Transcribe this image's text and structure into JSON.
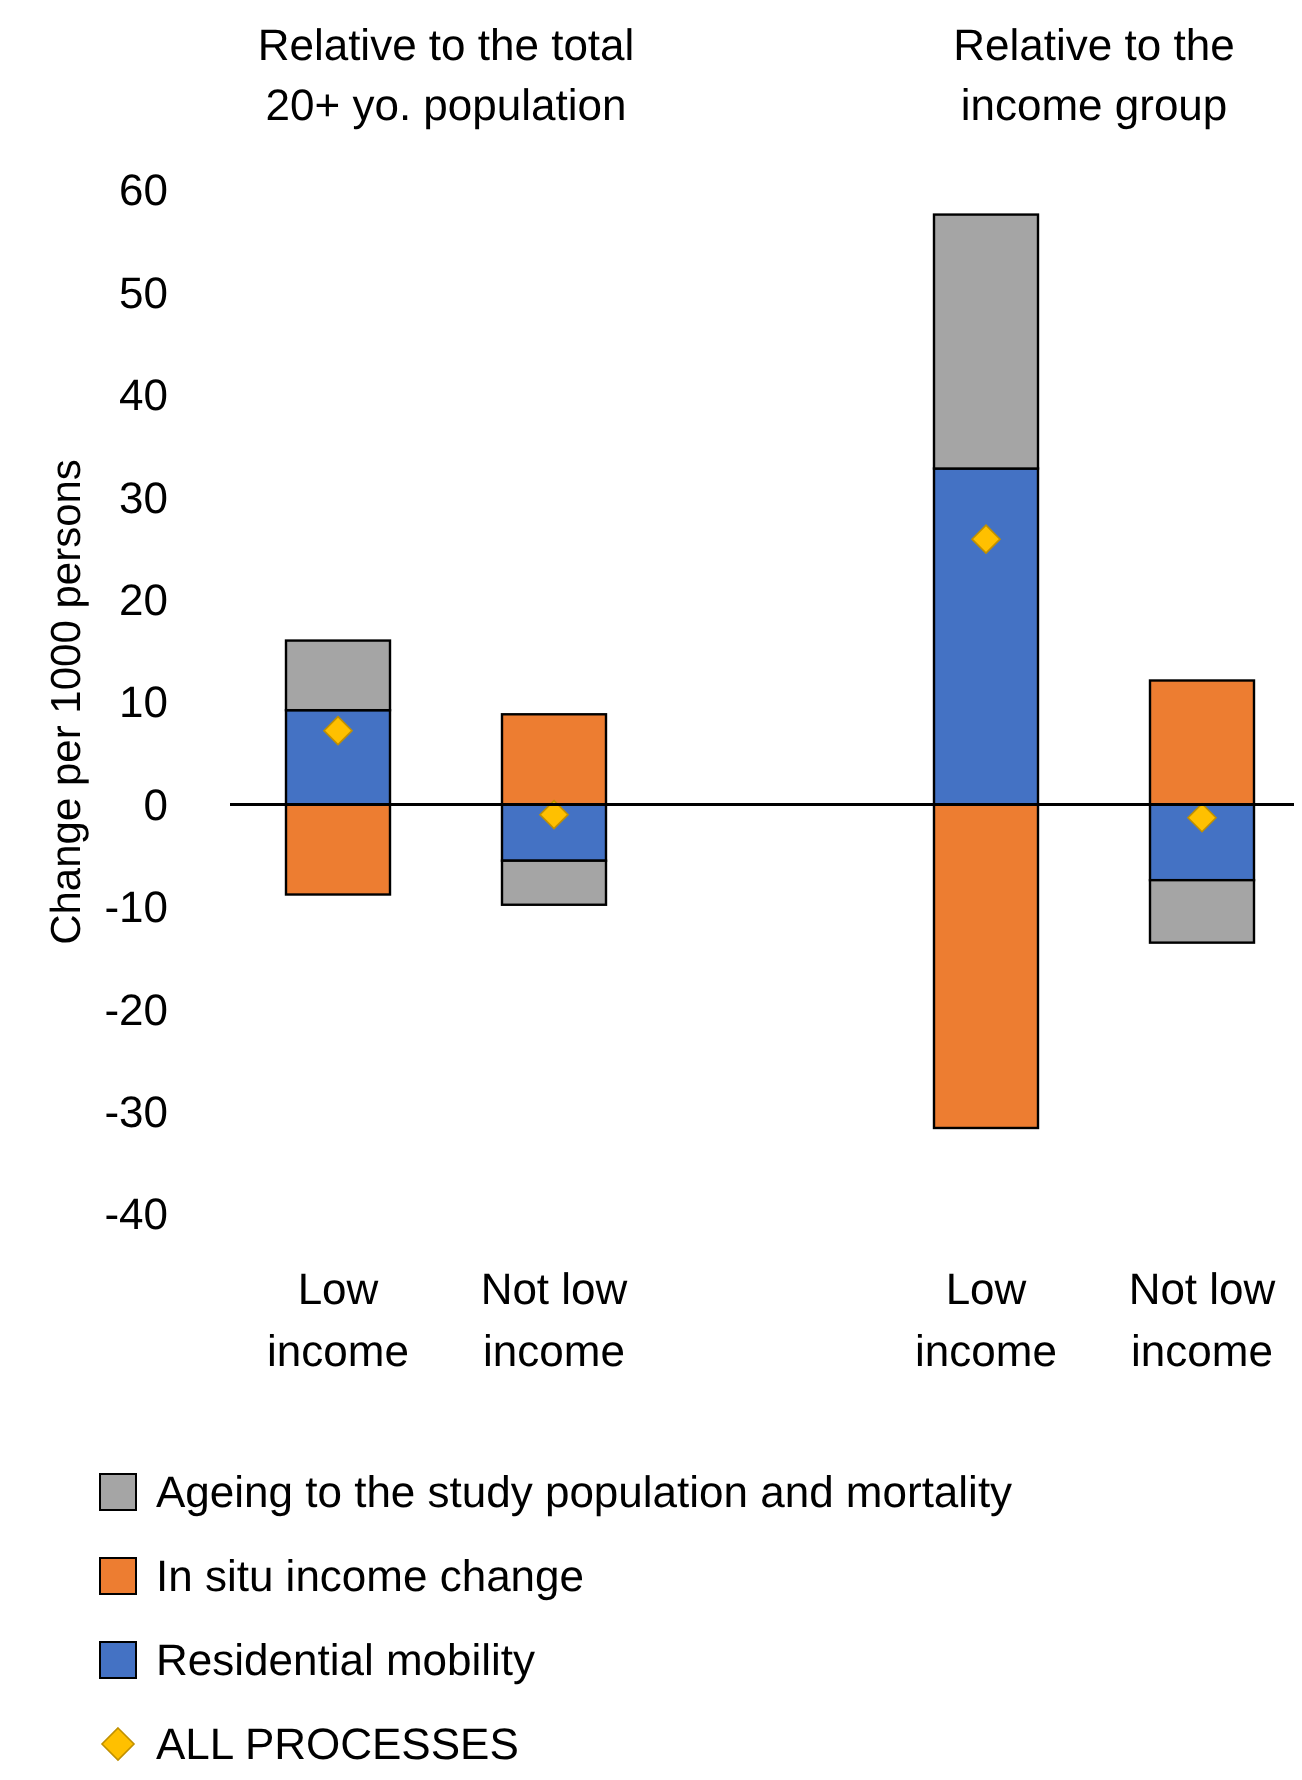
{
  "chart_data": {
    "type": "bar",
    "stacked": true,
    "ylabel": "Change per 1000 persons",
    "categories": [
      "Low income",
      "Not low income",
      null,
      "Low income",
      "Not low income"
    ],
    "annotations": [
      "Relative to the total\n20+ yo. population",
      "Relative to the\nincome group"
    ],
    "series": [
      {
        "name": "Residential mobility",
        "color": "#4472c4",
        "values": [
          9.2,
          -5.5,
          null,
          32.8,
          -7.4
        ]
      },
      {
        "name": "In situ income change",
        "color": "#ed7d31",
        "values": [
          -8.8,
          8.8,
          null,
          -31.6,
          12.1
        ]
      },
      {
        "name": "Ageing to the study population and mortality",
        "color": "#a5a5a5",
        "values": [
          6.8,
          -4.3,
          null,
          24.8,
          -6.1
        ]
      },
      {
        "name": "ALL PROCESSES",
        "type": "scatter",
        "marker": "diamond",
        "color": "#ffc000",
        "values": [
          7.2,
          -1.0,
          null,
          25.9,
          -1.3
        ]
      }
    ],
    "ylim": [
      -40,
      60
    ],
    "yticks": [
      -40,
      -30,
      -20,
      -10,
      0,
      10,
      20,
      30,
      40,
      50,
      60
    ],
    "legend": "bottom"
  }
}
